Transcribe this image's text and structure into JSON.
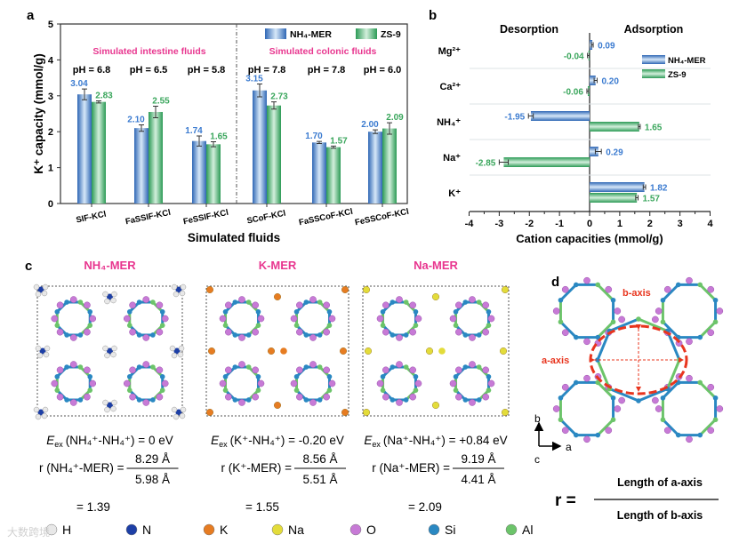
{
  "panel_labels": {
    "a": "a",
    "b": "b",
    "c": "c",
    "d": "d"
  },
  "colors": {
    "nh4_mer": "#3b7bd0",
    "zs9": "#3aa65c",
    "section_title": "#e8368f",
    "ellipse": "#e8351e"
  },
  "chart_data": [
    {
      "type": "bar",
      "panel": "a",
      "title": "",
      "xlabel": "Simulated fluids",
      "ylabel": "K⁺ capacity (mmol/g)",
      "ylim": [
        0,
        5
      ],
      "yticks": [
        "0",
        "1",
        "2",
        "3",
        "4",
        "5"
      ],
      "categories": [
        "SIF-KCl",
        "FaSSIF-KCl",
        "FeSSIF-KCl",
        "SCoF-KCl",
        "FaSSCoF-KCl",
        "FeSSCoF-KCl"
      ],
      "ph_labels": [
        "pH = 6.8",
        "pH = 6.5",
        "pH = 5.8",
        "pH = 7.8",
        "pH = 7.8",
        "pH = 6.0"
      ],
      "section_titles": [
        "Simulated intestine fluids",
        "Simulated colonic fluids"
      ],
      "series": [
        {
          "name": "NH₄-MER",
          "values": [
            3.04,
            2.1,
            1.74,
            3.15,
            1.7,
            2.0
          ],
          "labels": [
            "3.04",
            "2.10",
            "1.74",
            "3.15",
            "1.70",
            "2.00"
          ],
          "errors": [
            0.15,
            0.09,
            0.14,
            0.18,
            0.03,
            0.05
          ]
        },
        {
          "name": "ZS-9",
          "values": [
            2.83,
            2.55,
            1.65,
            2.73,
            1.57,
            2.09
          ],
          "labels": [
            "2.83",
            "2.55",
            "1.65",
            "2.73",
            "1.57",
            "2.09"
          ],
          "errors": [
            0.03,
            0.16,
            0.07,
            0.1,
            0.03,
            0.16
          ]
        }
      ],
      "legend": "top-right"
    },
    {
      "type": "bar",
      "orientation": "horizontal",
      "panel": "b",
      "xlabel": "Cation capacities (mmol/g)",
      "xlim": [
        -4,
        4
      ],
      "xticks": [
        "-4",
        "-3",
        "-2",
        "-1",
        "0",
        "1",
        "2",
        "3",
        "4"
      ],
      "region_labels": [
        "Desorption",
        "Adsorption"
      ],
      "categories": [
        "Mg²⁺",
        "Ca²⁺",
        "NH₄⁺",
        "Na⁺",
        "K⁺"
      ],
      "series": [
        {
          "name": "NH₄-MER",
          "values": [
            0.09,
            0.2,
            -1.95,
            0.29,
            1.82
          ],
          "labels": [
            "0.09",
            "0.20",
            "-1.95",
            "0.29",
            "1.82"
          ],
          "errors": [
            0.03,
            0.05,
            0.08,
            0.1,
            0.04
          ]
        },
        {
          "name": "ZS-9",
          "values": [
            -0.04,
            -0.06,
            1.65,
            -2.85,
            1.57
          ],
          "labels": [
            "-0.04",
            "-0.06",
            "1.65",
            "-2.85",
            "1.57"
          ],
          "errors": [
            0.03,
            0.03,
            0.03,
            0.15,
            0.04
          ]
        }
      ],
      "legend": "top-right"
    }
  ],
  "panel_c": {
    "structures": [
      {
        "title": "NH₄-MER",
        "energy_lhs": "(NH₄⁺-NH₄⁺) = 0 eV",
        "r_lhs": "r (NH₄⁺-MER) =",
        "numerator": "8.29 Å",
        "denominator": "5.98 Å",
        "result": "= 1.39",
        "ion": "NH4"
      },
      {
        "title": "K-MER",
        "energy_lhs": "(K⁺-NH₄⁺) = -0.20 eV",
        "r_lhs": "r (K⁺-MER) =",
        "numerator": "8.56 Å",
        "denominator": "5.51 Å",
        "result": "= 1.55",
        "ion": "K"
      },
      {
        "title": "Na-MER",
        "energy_lhs": "(Na⁺-NH₄⁺) = +0.84 eV",
        "r_lhs": "r (Na⁺-MER) =",
        "numerator": "9.19 Å",
        "denominator": "4.41 Å",
        "result": "= 2.09",
        "ion": "Na"
      }
    ],
    "energy_symbol": "E",
    "energy_subscript": "ex",
    "atom_legend": [
      {
        "symbol": "H",
        "color": "#e8e8e8"
      },
      {
        "symbol": "N",
        "color": "#1d3fa6"
      },
      {
        "symbol": "K",
        "color": "#e67c22"
      },
      {
        "symbol": "Na",
        "color": "#e3dc3a"
      },
      {
        "symbol": "O",
        "color": "#c77ad6"
      },
      {
        "symbol": "Si",
        "color": "#2a88c2"
      },
      {
        "symbol": "Al",
        "color": "#6cc46a"
      }
    ]
  },
  "panel_d": {
    "b_axis_label": "b-axis",
    "a_axis_label": "a-axis",
    "axes": {
      "b": "b",
      "a": "a",
      "c": "c"
    },
    "formula_lhs": "r =",
    "numerator": "Length of a-axis",
    "denominator": "Length of b-axis"
  },
  "watermark": "大数跨境"
}
